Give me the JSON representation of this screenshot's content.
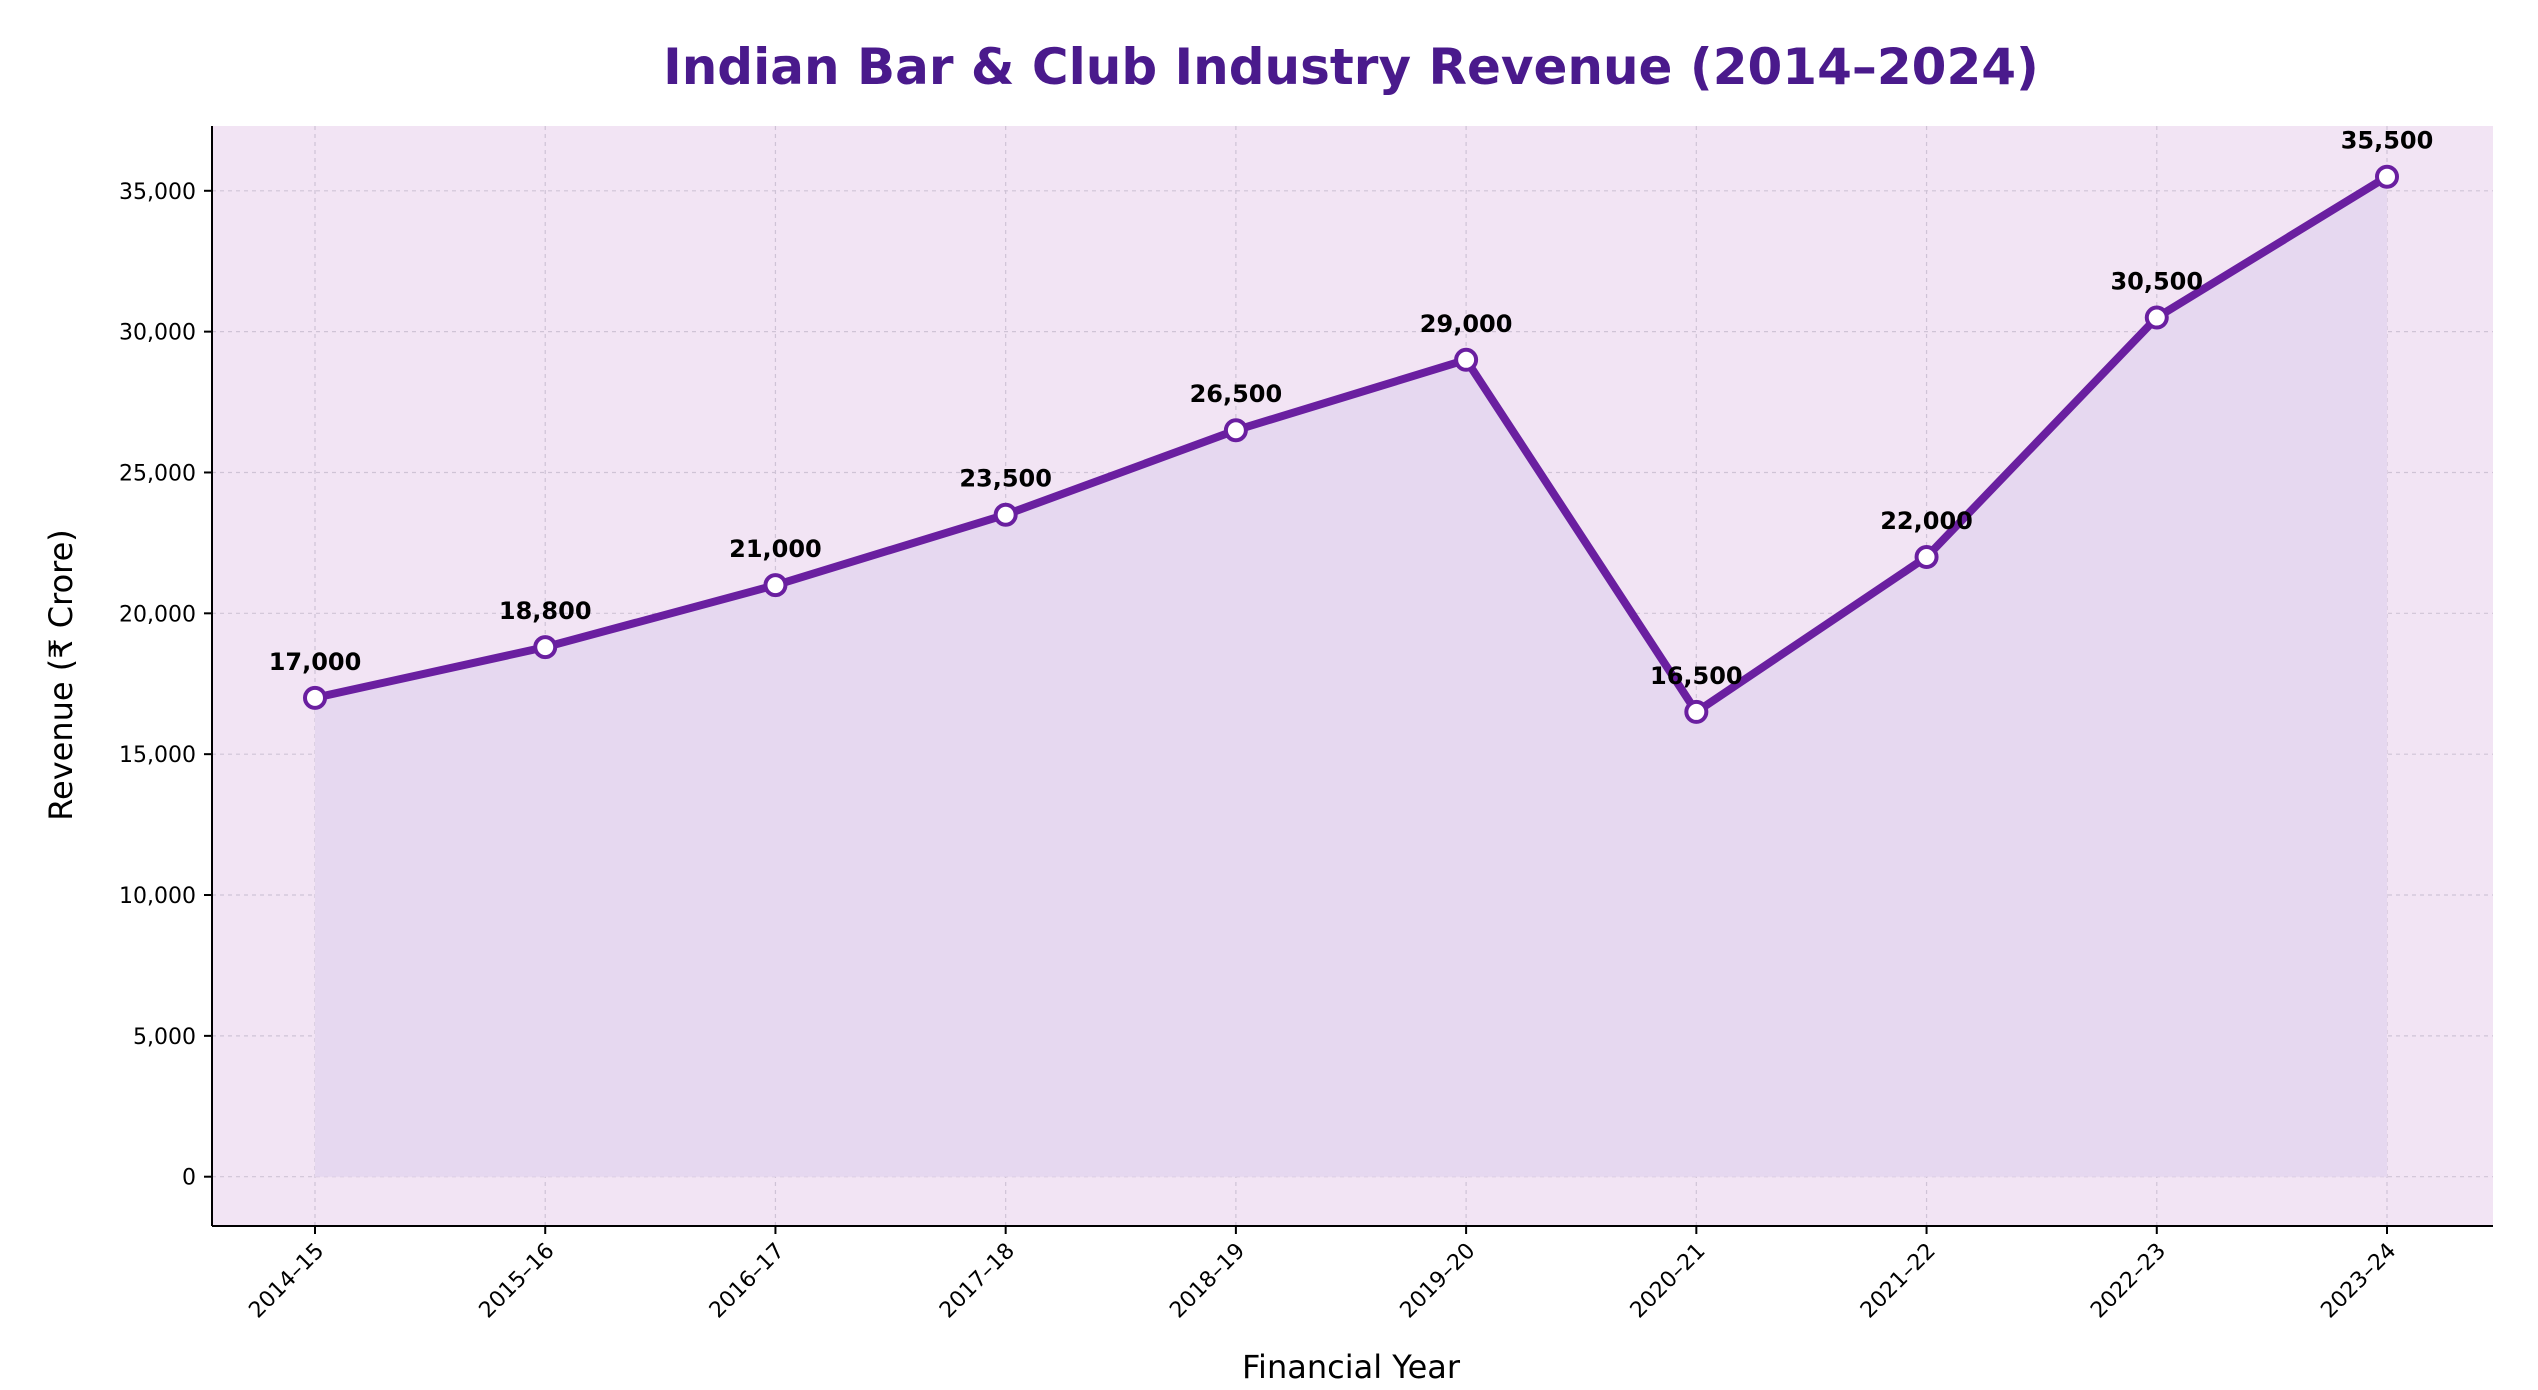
{
  "chart_data": {
    "type": "line",
    "title": "Indian Bar & Club Industry Revenue (2014–2024)",
    "xlabel": "Financial Year",
    "ylabel": "Revenue (₹ Crore)",
    "categories": [
      "2014–15",
      "2015–16",
      "2016–17",
      "2017–18",
      "2018–19",
      "2019–20",
      "2020–21",
      "2021–22",
      "2022–23",
      "2023–24"
    ],
    "series": [
      {
        "name": "Revenue",
        "values": [
          17000,
          18800,
          21000,
          23500,
          26500,
          29000,
          16500,
          22000,
          30500,
          35500
        ]
      }
    ],
    "data_labels": [
      "17,000",
      "18,800",
      "21,000",
      "23,500",
      "26,500",
      "29,000",
      "16,500",
      "22,000",
      "30,500",
      "35,500"
    ],
    "ylim": [
      -1750,
      37300
    ],
    "yticks": [
      0,
      5000,
      10000,
      15000,
      20000,
      25000,
      30000,
      35000
    ],
    "ytick_labels": [
      "0",
      "5,000",
      "10,000",
      "15,000",
      "20,000",
      "25,000",
      "30,000",
      "35,000"
    ],
    "grid": true,
    "area_fill": true
  },
  "colors": {
    "title": "#4a1a8c",
    "line": "#6a1fa0",
    "marker_fill": "#ffffff",
    "plot_background": "#f2e4f4",
    "area_fill": "#e6d8f0",
    "grid": "#cfc3d6",
    "axis": "#000000"
  }
}
